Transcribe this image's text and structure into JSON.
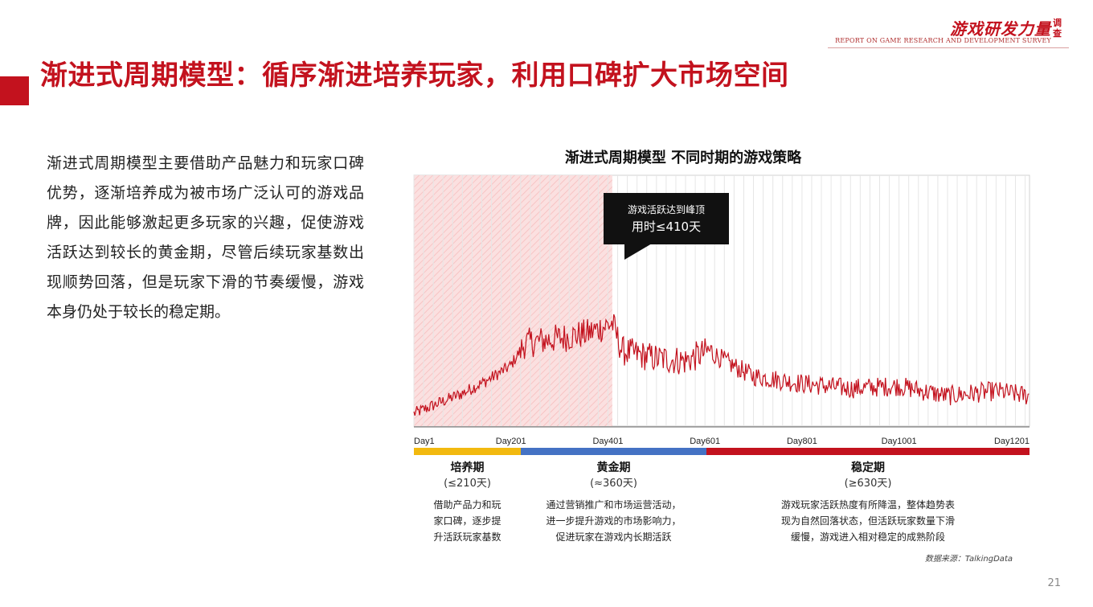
{
  "header": {
    "logo_text": "游戏研发力量",
    "logo_side_text": "调查",
    "logo_subtitle": "REPORT ON GAME RESEARCH AND DEVELOPMENT SURVEY",
    "page_title": "渐进式周期模型：循序渐进培养玩家，利用口碑扩大市场空间"
  },
  "intro": {
    "text": "渐进式周期模型主要借助产品魅力和玩家口碑优势，逐渐培养成为被市场广泛认可的游戏品牌，因此能够激起更多玩家的兴趣，促使游戏活跃达到较长的黄金期，尽管后续玩家基数出现顺势回落，但是玩家下滑的节奏缓慢，游戏本身仍处于较长的稳定期。"
  },
  "chart": {
    "title": "渐进式周期模型 不同时期的游戏策略",
    "callout_line1": "游戏活跃达到峰顶",
    "callout_line2": "用时≤410天"
  },
  "chart_data": {
    "type": "line",
    "title": "渐进式周期模型 不同时期的游戏策略",
    "xlabel": "",
    "ylabel": "",
    "x_ticks": [
      "Day1",
      "Day201",
      "Day401",
      "Day601",
      "Day801",
      "Day1001",
      "Day1201"
    ],
    "x_range": [
      1,
      1270
    ],
    "y_range": [
      0,
      100
    ],
    "highlight_range": [
      1,
      410
    ],
    "peak_day": 410,
    "approx_trend": [
      {
        "day": 1,
        "value": 5
      },
      {
        "day": 50,
        "value": 9
      },
      {
        "day": 100,
        "value": 13
      },
      {
        "day": 150,
        "value": 18
      },
      {
        "day": 200,
        "value": 24
      },
      {
        "day": 230,
        "value": 33
      },
      {
        "day": 300,
        "value": 35
      },
      {
        "day": 360,
        "value": 37
      },
      {
        "day": 410,
        "value": 41
      },
      {
        "day": 430,
        "value": 30
      },
      {
        "day": 500,
        "value": 27
      },
      {
        "day": 560,
        "value": 26
      },
      {
        "day": 610,
        "value": 30
      },
      {
        "day": 650,
        "value": 25
      },
      {
        "day": 700,
        "value": 20
      },
      {
        "day": 800,
        "value": 17
      },
      {
        "day": 900,
        "value": 15
      },
      {
        "day": 1000,
        "value": 16
      },
      {
        "day": 1100,
        "value": 12
      },
      {
        "day": 1200,
        "value": 14
      },
      {
        "day": 1270,
        "value": 12
      }
    ],
    "series_color": "#c3121e",
    "grid": true
  },
  "phases": [
    {
      "name": "培养期",
      "duration": "(≤210天)",
      "color": "#f2b90f",
      "desc": [
        "借助产品力和玩",
        "家口碑，逐步提",
        "升活跃玩家基数"
      ]
    },
    {
      "name": "黄金期",
      "duration": "(≈360天)",
      "color": "#4472c4",
      "desc": [
        "通过营销推广和市场运营活动，",
        "进一步提升游戏的市场影响力，",
        "促进玩家在游戏内长期活跃"
      ]
    },
    {
      "name": "稳定期",
      "duration": "(≥630天)",
      "color": "#c3121e",
      "desc": [
        "游戏玩家活跃热度有所降温，整体趋势表",
        "现为自然回落状态，但活跃玩家数量下滑",
        "缓慢，游戏进入相对稳定的成熟阶段"
      ]
    }
  ],
  "footer": {
    "source": "数据来源：TalkingData",
    "page_number": "21"
  }
}
